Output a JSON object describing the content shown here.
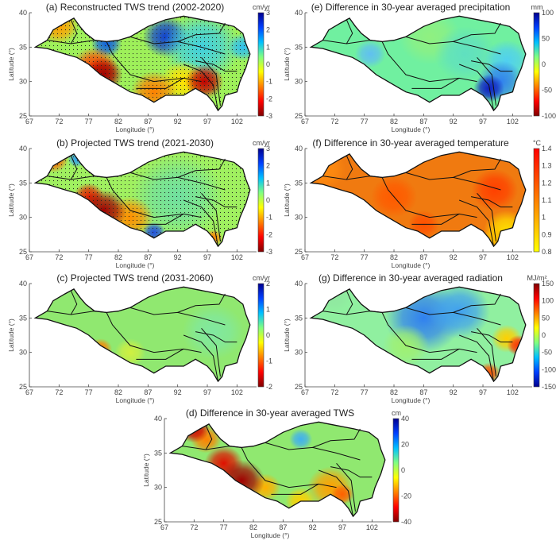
{
  "axes": {
    "xlabel": "Longitude (°)",
    "ylabel": "Latitude (°)",
    "xticks": [
      "67",
      "72",
      "77",
      "82",
      "87",
      "92",
      "97",
      "102"
    ],
    "yticks": [
      "25",
      "30",
      "35",
      "40"
    ]
  },
  "panels": [
    {
      "id": "a",
      "title": "(a) Reconstructed TWS trend (2002-2020)",
      "unit": "cm/yr",
      "colormap": "jet",
      "cbar_ticks": [
        "3",
        "2",
        "1",
        "0",
        "-1",
        "-2",
        "-3"
      ],
      "stippled": true
    },
    {
      "id": "b",
      "title": "(b) Projected TWS trend (2021-2030)",
      "unit": "cm/yr",
      "colormap": "jet",
      "cbar_ticks": [
        "3",
        "2",
        "1",
        "0",
        "-1",
        "-2",
        "-3"
      ],
      "stippled": true
    },
    {
      "id": "c",
      "title": "(c) Projected TWS trend (2031-2060)",
      "unit": "cm/yr",
      "colormap": "jet",
      "cbar_ticks": [
        "2",
        "1",
        "0",
        "-1",
        "-2"
      ],
      "stippled": false
    },
    {
      "id": "d",
      "title": "(d) Difference in 30-year averaged TWS",
      "unit": "cm",
      "colormap": "jet",
      "cbar_ticks": [
        "40",
        "20",
        "0",
        "-20",
        "-40"
      ],
      "stippled": false
    },
    {
      "id": "e",
      "title": "(e) Difference in 30-year averaged precipitation",
      "unit": "mm",
      "colormap": "jet",
      "cbar_ticks": [
        "100",
        "50",
        "0",
        "-50",
        "-100"
      ],
      "stippled": false
    },
    {
      "id": "f",
      "title": "(f) Difference in 30-year averaged temperature",
      "unit": "°C",
      "colormap": "autumn",
      "cbar_ticks": [
        "1.4",
        "1.3",
        "1.2",
        "1.1",
        "1",
        "0.9",
        "0.8"
      ],
      "stippled": false
    },
    {
      "id": "g",
      "title": "(g) Difference in 30-year averaged radiation",
      "unit": "MJ/m²",
      "colormap": "jet-reversed",
      "cbar_ticks": [
        "150",
        "100",
        "50",
        "0",
        "-50",
        "-100",
        "-150"
      ],
      "stippled": false
    }
  ],
  "colormaps": {
    "jet": [
      "#00008f",
      "#0040ff",
      "#00c0ff",
      "#80ff80",
      "#ffff00",
      "#ff8000",
      "#ff0000",
      "#800000"
    ],
    "jet-reversed": [
      "#800000",
      "#ff0000",
      "#ff8000",
      "#ffff00",
      "#80ff80",
      "#00c0ff",
      "#0040ff",
      "#00008f"
    ],
    "autumn": [
      "#ff0000",
      "#ff8000",
      "#ffff00"
    ]
  }
}
